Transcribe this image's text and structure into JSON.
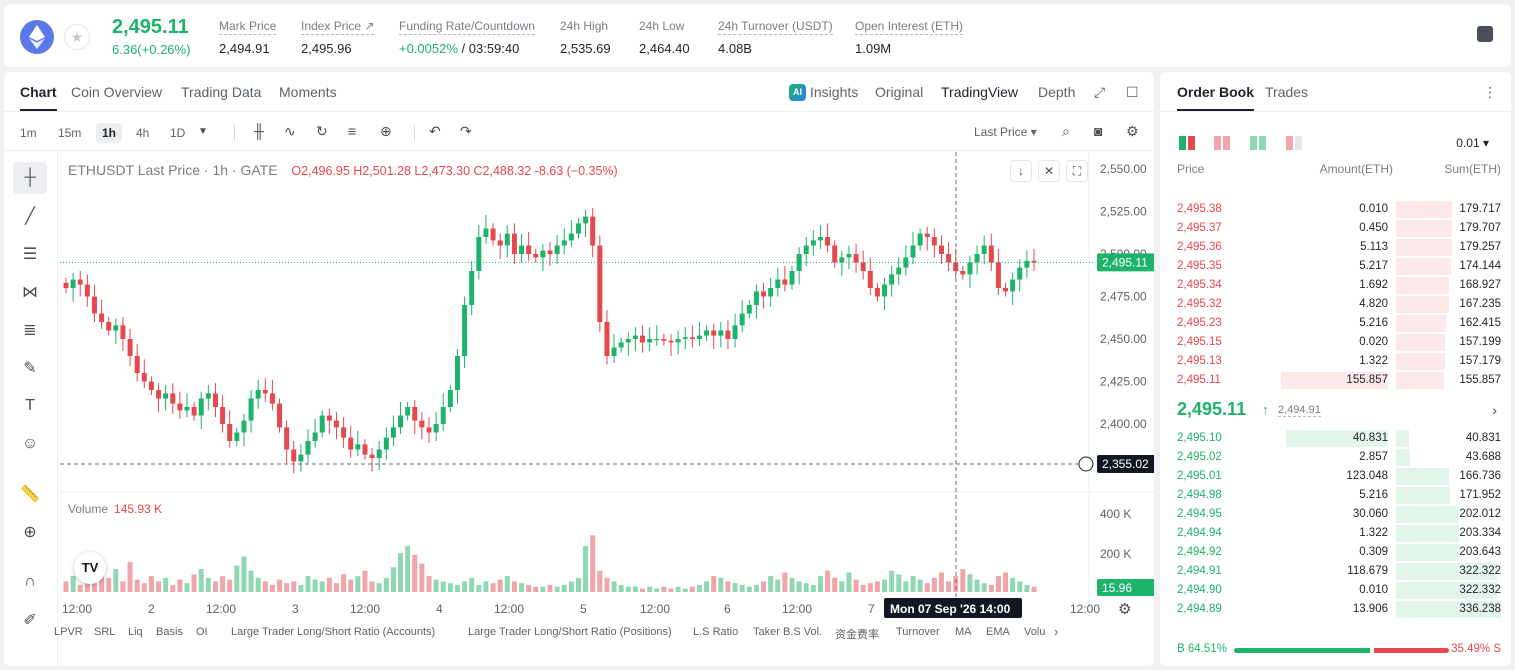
{
  "ticker": {
    "last_price": "2,495.11",
    "change": "6.36(+0.26%)",
    "stats": [
      {
        "label": "Mark Price",
        "value": "2,494.91"
      },
      {
        "label": "Index Price ↗",
        "value": "2,495.96"
      },
      {
        "label": "Funding Rate/Countdown",
        "value_pos": "+0.0052%",
        "value": " / 03:59:40"
      },
      {
        "label": "24h High",
        "value": "2,535.69"
      },
      {
        "label": "24h Low",
        "value": "2,464.40"
      },
      {
        "label": "24h Turnover (USDT)",
        "value": "4.08B"
      },
      {
        "label": "Open Interest (ETH)",
        "value": "1.09M"
      }
    ]
  },
  "chart_tabs": [
    "Chart",
    "Coin Overview",
    "Trading Data",
    "Moments"
  ],
  "view_tabs": {
    "ai": "AI",
    "insights": "Insights",
    "original": "Original",
    "tradingview": "TradingView",
    "depth": "Depth"
  },
  "intervals": [
    "1m",
    "15m",
    "1h",
    "4h",
    "1D"
  ],
  "price_type": "Last Price ▾",
  "legend": {
    "title": "ETHUSDT Last Price · 1h · GATE",
    "ohlc": "O2,496.95  H2,501.28  L2,473.30  C2,488.32  -8.63 (−0.35%)"
  },
  "volume": {
    "label": "Volume",
    "value": "145.93 K"
  },
  "chart_data": {
    "type": "candlestick",
    "price_axis": [
      "2,550.00",
      "2,525.00",
      "2,500.00",
      "2,475.00",
      "2,450.00",
      "2,425.00",
      "2,400.00",
      "2,375.00"
    ],
    "volume_axis": [
      "400 K",
      "200 K"
    ],
    "time_axis": [
      "12:00",
      "2",
      "12:00",
      "3",
      "12:00",
      "4",
      "12:00",
      "5",
      "12:00",
      "6",
      "12:00",
      "7",
      "12:00"
    ],
    "last_price_label": "2,495.11",
    "crosshair_price_label": "2,355.02",
    "crosshair_time_label": "Mon 07 Sep '26   14:00",
    "volume_last_label": "15.96",
    "closes": [
      2480,
      2485,
      2482,
      2475,
      2465,
      2460,
      2455,
      2458,
      2450,
      2440,
      2430,
      2425,
      2420,
      2415,
      2418,
      2412,
      2408,
      2410,
      2405,
      2415,
      2418,
      2410,
      2400,
      2390,
      2395,
      2402,
      2415,
      2420,
      2418,
      2412,
      2398,
      2385,
      2378,
      2382,
      2390,
      2395,
      2405,
      2402,
      2398,
      2392,
      2385,
      2388,
      2382,
      2380,
      2385,
      2392,
      2398,
      2405,
      2410,
      2402,
      2398,
      2395,
      2400,
      2410,
      2420,
      2440,
      2470,
      2490,
      2510,
      2515,
      2508,
      2505,
      2512,
      2500,
      2505,
      2500,
      2498,
      2502,
      2500,
      2505,
      2508,
      2512,
      2518,
      2522,
      2505,
      2460,
      2440,
      2445,
      2448,
      2450,
      2452,
      2448,
      2450,
      2450,
      2449,
      2448,
      2450,
      2451,
      2450,
      2452,
      2455,
      2452,
      2455,
      2450,
      2458,
      2465,
      2470,
      2478,
      2475,
      2480,
      2485,
      2482,
      2490,
      2500,
      2505,
      2508,
      2510,
      2505,
      2495,
      2498,
      2500,
      2495,
      2490,
      2480,
      2475,
      2482,
      2488,
      2492,
      2498,
      2505,
      2512,
      2510,
      2505,
      2500,
      2495,
      2490,
      2488,
      2495,
      2500,
      2505,
      2495,
      2480,
      2478,
      2485,
      2492,
      2496,
      2495
    ],
    "volumes": [
      60,
      90,
      40,
      70,
      50,
      110,
      80,
      130,
      60,
      170,
      70,
      50,
      90,
      60,
      80,
      40,
      70,
      50,
      100,
      130,
      80,
      60,
      90,
      70,
      150,
      200,
      120,
      80,
      60,
      40,
      70,
      50,
      60,
      40,
      90,
      70,
      60,
      80,
      50,
      100,
      70,
      90,
      120,
      60,
      50,
      80,
      140,
      220,
      260,
      210,
      160,
      90,
      70,
      60,
      50,
      40,
      60,
      80,
      40,
      60,
      50,
      70,
      90,
      60,
      50,
      40,
      30,
      30,
      40,
      30,
      40,
      60,
      80,
      260,
      320,
      120,
      80,
      60,
      40,
      30,
      30,
      20,
      30,
      20,
      30,
      20,
      30,
      20,
      30,
      40,
      60,
      90,
      80,
      60,
      50,
      40,
      30,
      40,
      60,
      90,
      70,
      110,
      80,
      60,
      50,
      40,
      90,
      120,
      80,
      60,
      110,
      70,
      40,
      50,
      60,
      70,
      120,
      100,
      60,
      90,
      70,
      50,
      80,
      110,
      60,
      90,
      130,
      100,
      70,
      50,
      40,
      90,
      110,
      80,
      60,
      40,
      30
    ],
    "ylim": [
      2360,
      2560
    ],
    "volume_max": 480
  },
  "indicators": [
    "LPVR",
    "SRL",
    "Liq",
    "Basis",
    "OI",
    "Large Trader Long/Short Ratio (Accounts)",
    "Large Trader Long/Short Ratio (Positions)",
    "L.S Ratio",
    "Taker B.S Vol.",
    "资金费率",
    "Turnover",
    "MA",
    "EMA",
    "Volu"
  ],
  "order_book": {
    "tabs": [
      "Order Book",
      "Trades"
    ],
    "precision": "0.01 ▾",
    "headers": {
      "price": "Price",
      "amount": "Amount(ETH)",
      "sum": "Sum(ETH)"
    },
    "asks": [
      {
        "price": "2,495.38",
        "amount": "0.010",
        "sum": "179.717",
        "amt_frac": 0.0,
        "sum_frac": 0.53
      },
      {
        "price": "2,495.37",
        "amount": "0.450",
        "sum": "179.707",
        "amt_frac": 0.0,
        "sum_frac": 0.53
      },
      {
        "price": "2,495.36",
        "amount": "5.113",
        "sum": "179.257",
        "amt_frac": 0.0,
        "sum_frac": 0.53
      },
      {
        "price": "2,495.35",
        "amount": "5.217",
        "sum": "174.144",
        "amt_frac": 0.0,
        "sum_frac": 0.52
      },
      {
        "price": "2,495.34",
        "amount": "1.692",
        "sum": "168.927",
        "amt_frac": 0.0,
        "sum_frac": 0.5
      },
      {
        "price": "2,495.32",
        "amount": "4.820",
        "sum": "167.235",
        "amt_frac": 0.0,
        "sum_frac": 0.5
      },
      {
        "price": "2,495.23",
        "amount": "5.216",
        "sum": "162.415",
        "amt_frac": 0.0,
        "sum_frac": 0.48
      },
      {
        "price": "2,495.15",
        "amount": "0.020",
        "sum": "157.199",
        "amt_frac": 0.0,
        "sum_frac": 0.47
      },
      {
        "price": "2,495.13",
        "amount": "1.322",
        "sum": "157.179",
        "amt_frac": 0.0,
        "sum_frac": 0.47
      },
      {
        "price": "2,495.11",
        "amount": "155.857",
        "sum": "155.857",
        "amt_frac": 1.0,
        "sum_frac": 0.46
      }
    ],
    "mid": {
      "price": "2,495.11",
      "arrow": "↑",
      "mark": "2,494.91",
      "chevron": "›"
    },
    "bids": [
      {
        "price": "2,495.10",
        "amount": "40.831",
        "sum": "40.831",
        "amt_frac": 0.95,
        "sum_frac": 0.12
      },
      {
        "price": "2,495.02",
        "amount": "2.857",
        "sum": "43.688",
        "amt_frac": 0.0,
        "sum_frac": 0.13
      },
      {
        "price": "2,495.01",
        "amount": "123.048",
        "sum": "166.736",
        "amt_frac": 0.0,
        "sum_frac": 0.5
      },
      {
        "price": "2,494.98",
        "amount": "5.216",
        "sum": "171.952",
        "amt_frac": 0.0,
        "sum_frac": 0.51
      },
      {
        "price": "2,494.95",
        "amount": "30.060",
        "sum": "202.012",
        "amt_frac": 0.0,
        "sum_frac": 0.6
      },
      {
        "price": "2,494.94",
        "amount": "1.322",
        "sum": "203.334",
        "amt_frac": 0.0,
        "sum_frac": 0.6
      },
      {
        "price": "2,494.92",
        "amount": "0.309",
        "sum": "203.643",
        "amt_frac": 0.0,
        "sum_frac": 0.61
      },
      {
        "price": "2,494.91",
        "amount": "118.679",
        "sum": "322.322",
        "amt_frac": 0.0,
        "sum_frac": 0.96
      },
      {
        "price": "2,494.90",
        "amount": "0.010",
        "sum": "322.332",
        "amt_frac": 0.0,
        "sum_frac": 0.96
      },
      {
        "price": "2,494.89",
        "amount": "13.906",
        "sum": "336.238",
        "amt_frac": 0.0,
        "sum_frac": 1.0
      }
    ],
    "ratio": {
      "buy": "B 64.51%",
      "sell": "35.49% S",
      "buy_frac": 0.6451
    }
  },
  "colors": {
    "up": "#1db36a",
    "down": "#e5484d",
    "up_vol": "#8fd8b3",
    "down_vol": "#f0a5ab"
  }
}
